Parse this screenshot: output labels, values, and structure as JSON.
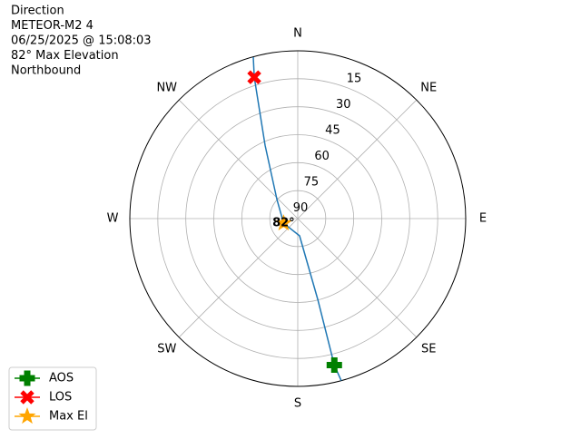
{
  "chart_data": {
    "type": "polar",
    "title_lines": [
      "Direction",
      "METEOR-M2 4",
      "06/25/2025 @ 15:08:03",
      "82° Max Elevation",
      "Northbound"
    ],
    "rlim": [
      90,
      0
    ],
    "rticks": [
      15,
      30,
      45,
      60,
      75,
      90
    ],
    "theta_direction": "clockwise",
    "theta_zero": "N",
    "thetaticks": [
      {
        "value": 0,
        "label": "N"
      },
      {
        "value": 45,
        "label": "NE"
      },
      {
        "value": 90,
        "label": "E"
      },
      {
        "value": 135,
        "label": "SE"
      },
      {
        "value": 180,
        "label": "S"
      },
      {
        "value": 225,
        "label": "SW"
      },
      {
        "value": 270,
        "label": "W"
      },
      {
        "value": 315,
        "label": "NW"
      }
    ],
    "grid": true,
    "track": {
      "color": "#1f77b4",
      "azimuth": [
        165,
        166,
        166.1,
        174,
        252,
        312.4,
        336,
        342.9,
        344.6
      ],
      "elevation": [
        0,
        9,
        45.4,
        80.7,
        82,
        74.9,
        46.9,
        10.7,
        0.2
      ]
    },
    "series": [
      {
        "name": "AOS",
        "color": "green",
        "marker": "plus",
        "azimuth": [
          166
        ],
        "elevation": [
          9
        ]
      },
      {
        "name": "LOS",
        "color": "red",
        "marker": "x",
        "azimuth": [
          342.9
        ],
        "elevation": [
          10.7
        ]
      },
      {
        "name": "Max El",
        "color": "orange",
        "marker": "star",
        "azimuth": [
          252
        ],
        "elevation": [
          82
        ]
      }
    ],
    "annotation": "82°",
    "legend": "lower left"
  }
}
